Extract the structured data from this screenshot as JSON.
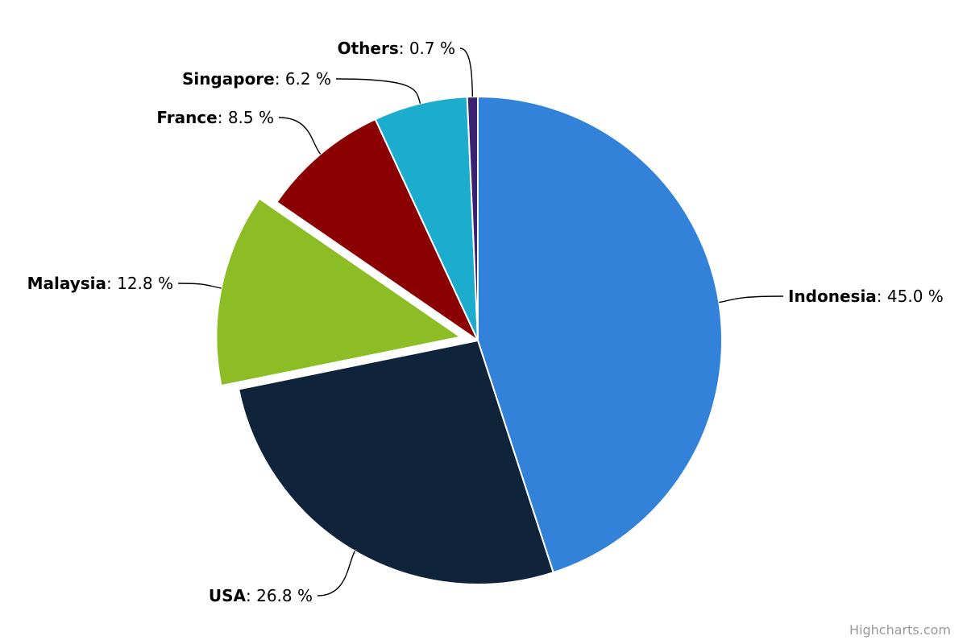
{
  "chart_data": {
    "type": "pie",
    "title": "",
    "unit": "%",
    "slices": [
      {
        "name": "Indonesia",
        "value": 45.0,
        "value_label": "45.0 %",
        "color": "#3182d8",
        "sliced": false
      },
      {
        "name": "USA",
        "value": 26.8,
        "value_label": "26.8 %",
        "color": "#0f233b",
        "sliced": false
      },
      {
        "name": "Malaysia",
        "value": 12.8,
        "value_label": "12.8 %",
        "color": "#8dbd25",
        "sliced": true
      },
      {
        "name": "France",
        "value": 8.5,
        "value_label": "8.5 %",
        "color": "#8b0000",
        "sliced": false
      },
      {
        "name": "Singapore",
        "value": 6.2,
        "value_label": "6.2 %",
        "color": "#1caccd",
        "sliced": false
      },
      {
        "name": "Others",
        "value": 0.7,
        "value_label": "0.7 %",
        "color": "#3a2371",
        "sliced": false
      }
    ],
    "start_angle_deg": 0,
    "legend": "none"
  },
  "credits": {
    "text": "Highcharts.com"
  }
}
